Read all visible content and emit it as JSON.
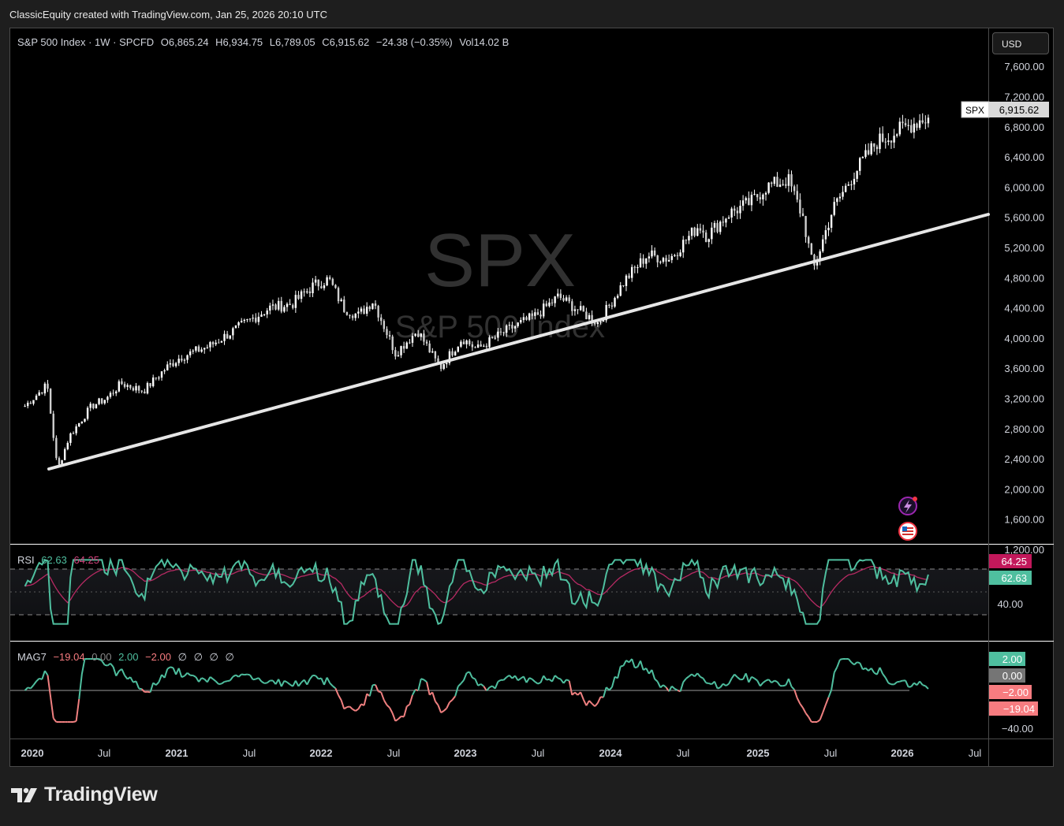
{
  "header": {
    "attribution": "ClassicEquity created with TradingView.com, Jan 25, 2026 20:10 UTC"
  },
  "legend": {
    "symbol": "S&P 500 Index · 1W · SPCFD",
    "open_label": "O",
    "open": "6,865.24",
    "high_label": "H",
    "high": "6,934.75",
    "low_label": "L",
    "low": "6,789.05",
    "close_label": "C",
    "close": "6,915.62",
    "change": "−24.38 (−0.35%)",
    "vol_label": "Vol",
    "vol": "14.02 B"
  },
  "currency_button": "USD",
  "watermark": {
    "ticker": "SPX",
    "name": "S&P 500 Index"
  },
  "price_tag": {
    "symbol": "SPX",
    "value": "6,915.62"
  },
  "rsi_legend": {
    "name": "RSI",
    "value1": "62.63",
    "value2": "64.25"
  },
  "rsi_tags": {
    "ma": "64.25",
    "rsi": "62.63"
  },
  "mag_legend": {
    "name": "MAG7",
    "v1": "−19.04",
    "v2": "0.00",
    "v3": "2.00",
    "v4": "−2.00",
    "v5": "∅",
    "v6": "∅",
    "v7": "∅",
    "v8": "∅"
  },
  "mag_tags": {
    "a": "2.00",
    "b": "0.00",
    "c": "−2.00",
    "d": "−19.04"
  },
  "branding": "TradingView",
  "colors": {
    "background": "#000000",
    "candle": "#ffffff",
    "trendline": "#e6e6e6",
    "rsi_line": "#4fbf9f",
    "rsi_ma": "#b72a63",
    "mag_pos": "#4fbf9f",
    "mag_neg": "#f08080",
    "tag_pink": "#c2185b",
    "tag_green": "#4fbf9f",
    "tag_gray": "#757575",
    "tag_salmon": "#f77c80"
  },
  "chart_data": [
    {
      "type": "candlestick",
      "title": "S&P 500 Index · 1W · SPCFD",
      "x_axis_labels": [
        "2020",
        "Jul",
        "2021",
        "Jul",
        "2022",
        "Jul",
        "2023",
        "Jul",
        "2024",
        "Jul",
        "2025",
        "Jul",
        "2026",
        "Jul"
      ],
      "y_axis_labels": [
        "7,600.00",
        "7,200.00",
        "6,800.00",
        "6,400.00",
        "6,000.00",
        "5,600.00",
        "5,200.00",
        "4,800.00",
        "4,400.00",
        "4,000.00",
        "3,600.00",
        "3,200.00",
        "2,800.00",
        "2,400.00",
        "2,000.00",
        "1,600.00",
        "1,200.00"
      ],
      "ylim": [
        1200,
        7600
      ],
      "xlim": [
        2020.0,
        2026.6
      ],
      "grid": false,
      "series": [
        {
          "name": "SPX",
          "x": [
            2019.95,
            2020.1,
            2020.17,
            2020.25,
            2020.4,
            2020.5,
            2020.6,
            2020.75,
            2020.9,
            2021.0,
            2021.2,
            2021.4,
            2021.6,
            2021.75,
            2021.9,
            2022.0,
            2022.1,
            2022.2,
            2022.3,
            2022.45,
            2022.6,
            2022.75,
            2022.9,
            2023.0,
            2023.2,
            2023.4,
            2023.55,
            2023.7,
            2023.82,
            2024.0,
            2024.15,
            2024.3,
            2024.5,
            2024.55,
            2024.7,
            2024.85,
            2024.95,
            2025.1,
            2025.2,
            2025.27,
            2025.4,
            2025.55,
            2025.7,
            2025.85,
            2026.0,
            2026.05
          ],
          "close": [
            3100,
            3380,
            2250,
            2700,
            3100,
            3200,
            3400,
            3300,
            3600,
            3750,
            3900,
            4150,
            4400,
            4450,
            4700,
            4780,
            4400,
            4300,
            4500,
            3800,
            4100,
            3600,
            4000,
            3850,
            4100,
            4300,
            4550,
            4350,
            4200,
            4770,
            5100,
            5050,
            5500,
            5350,
            5650,
            5800,
            6000,
            6100,
            5600,
            4900,
            5700,
            6200,
            6600,
            6750,
            6900,
            6915.62
          ]
        }
      ],
      "trendline": {
        "points": [
          [
            2020.2,
            2140
          ],
          [
            2026.6,
            5540
          ]
        ]
      }
    },
    {
      "type": "line",
      "title": "RSI",
      "y_axis_labels": [
        "40.00"
      ],
      "reference_lines": [
        70,
        50,
        30
      ],
      "series": [
        {
          "name": "RSI",
          "latest": 62.63
        },
        {
          "name": "RSI MA",
          "latest": 64.25
        }
      ]
    },
    {
      "type": "area",
      "title": "MAG7",
      "y_axis_labels": [
        "−40.00"
      ],
      "reference_line": 0,
      "series": [
        {
          "name": "MAG7",
          "latest": -19.04
        }
      ]
    }
  ]
}
